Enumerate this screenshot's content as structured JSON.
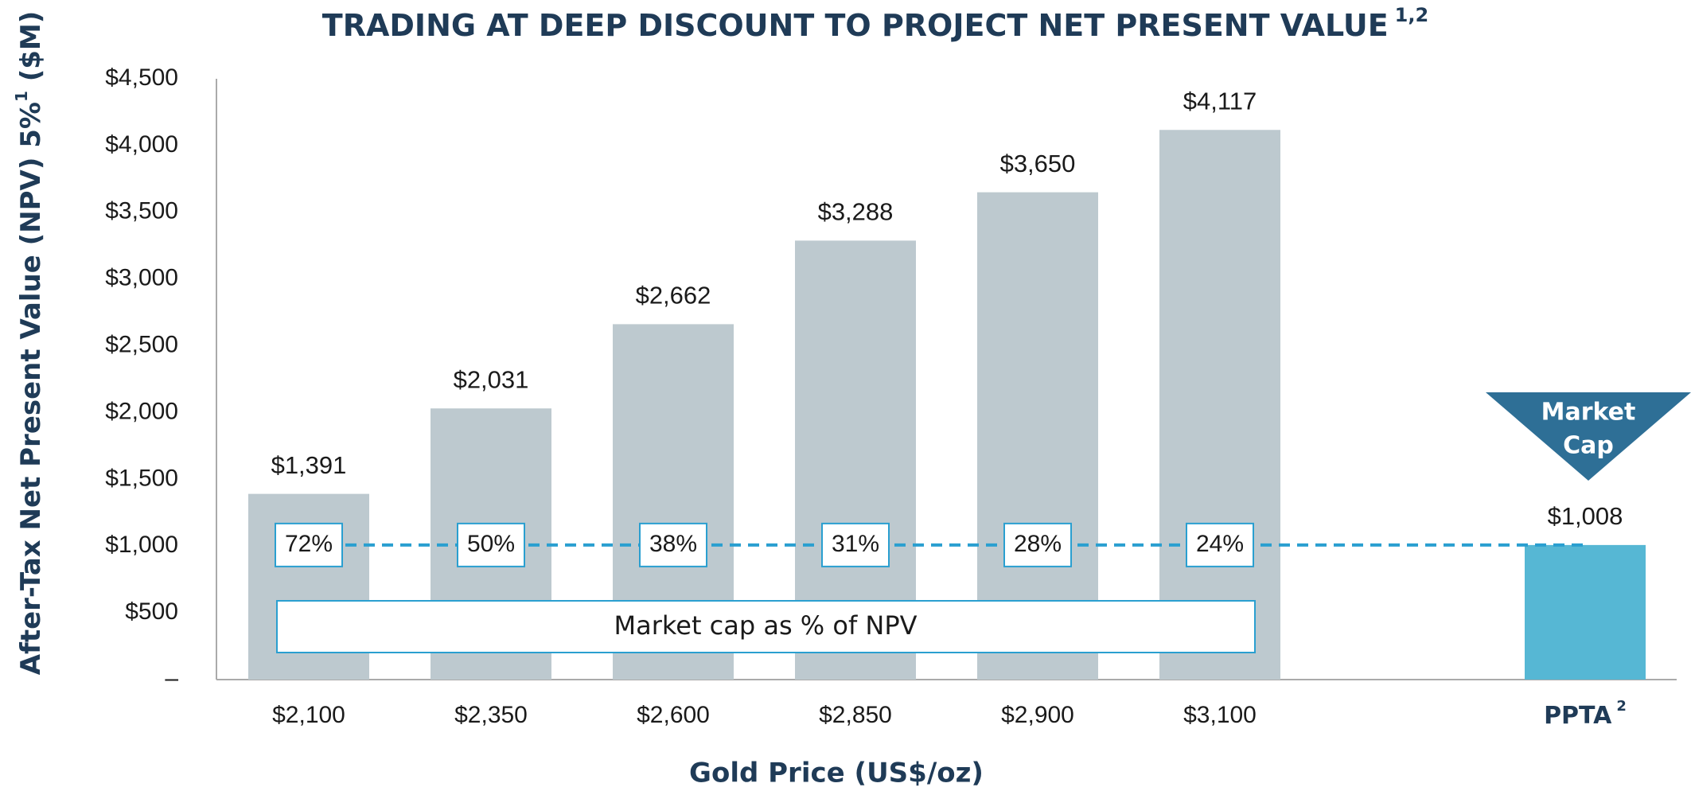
{
  "chart_data": {
    "type": "bar",
    "title": "TRADING AT DEEP DISCOUNT TO PROJECT NET PRESENT VALUE",
    "title_superscript": "1,2",
    "y_label": [
      "After-Tax Net Present Value (NPV) 5%",
      "1",
      " ($M)"
    ],
    "x_label": "Gold Price (US$/oz)",
    "categories": [
      "$2,100",
      "$2,350",
      "$2,600",
      "$2,850",
      "$2,900",
      "$3,100",
      "PPTA"
    ],
    "category_superscript": [
      null,
      null,
      null,
      null,
      null,
      null,
      "2"
    ],
    "values": [
      1391,
      2031,
      2662,
      3288,
      3650,
      4117,
      1008
    ],
    "value_labels": [
      "$1,391",
      "$2,031",
      "$2,662",
      "$3,288",
      "$3,650",
      "$4,117",
      "$1,008"
    ],
    "colors": [
      "#bdc9cf",
      "#bdc9cf",
      "#bdc9cf",
      "#bdc9cf",
      "#bdc9cf",
      "#bdc9cf",
      "#56b7d4"
    ],
    "percentages": [
      72,
      50,
      38,
      31,
      28,
      24
    ],
    "percentage_labels": [
      "72%",
      "50%",
      "38%",
      "31%",
      "28%",
      "24%"
    ],
    "percentage_annotation": "Market cap as % of NPV",
    "market_cap_callout": [
      "Market",
      "Cap"
    ],
    "ylim": [
      0,
      4500
    ],
    "yticks": [
      {
        "value": 0,
        "label": "–"
      },
      {
        "value": 500,
        "label": "$500"
      },
      {
        "value": 1000,
        "label": "$1,000"
      },
      {
        "value": 1500,
        "label": "$1,500"
      },
      {
        "value": 2000,
        "label": "$2,000"
      },
      {
        "value": 2500,
        "label": "$2,500"
      },
      {
        "value": 3000,
        "label": "$3,000"
      },
      {
        "value": 3500,
        "label": "$3,500"
      },
      {
        "value": 4000,
        "label": "$4,000"
      },
      {
        "value": 4500,
        "label": "$4,500"
      }
    ]
  }
}
